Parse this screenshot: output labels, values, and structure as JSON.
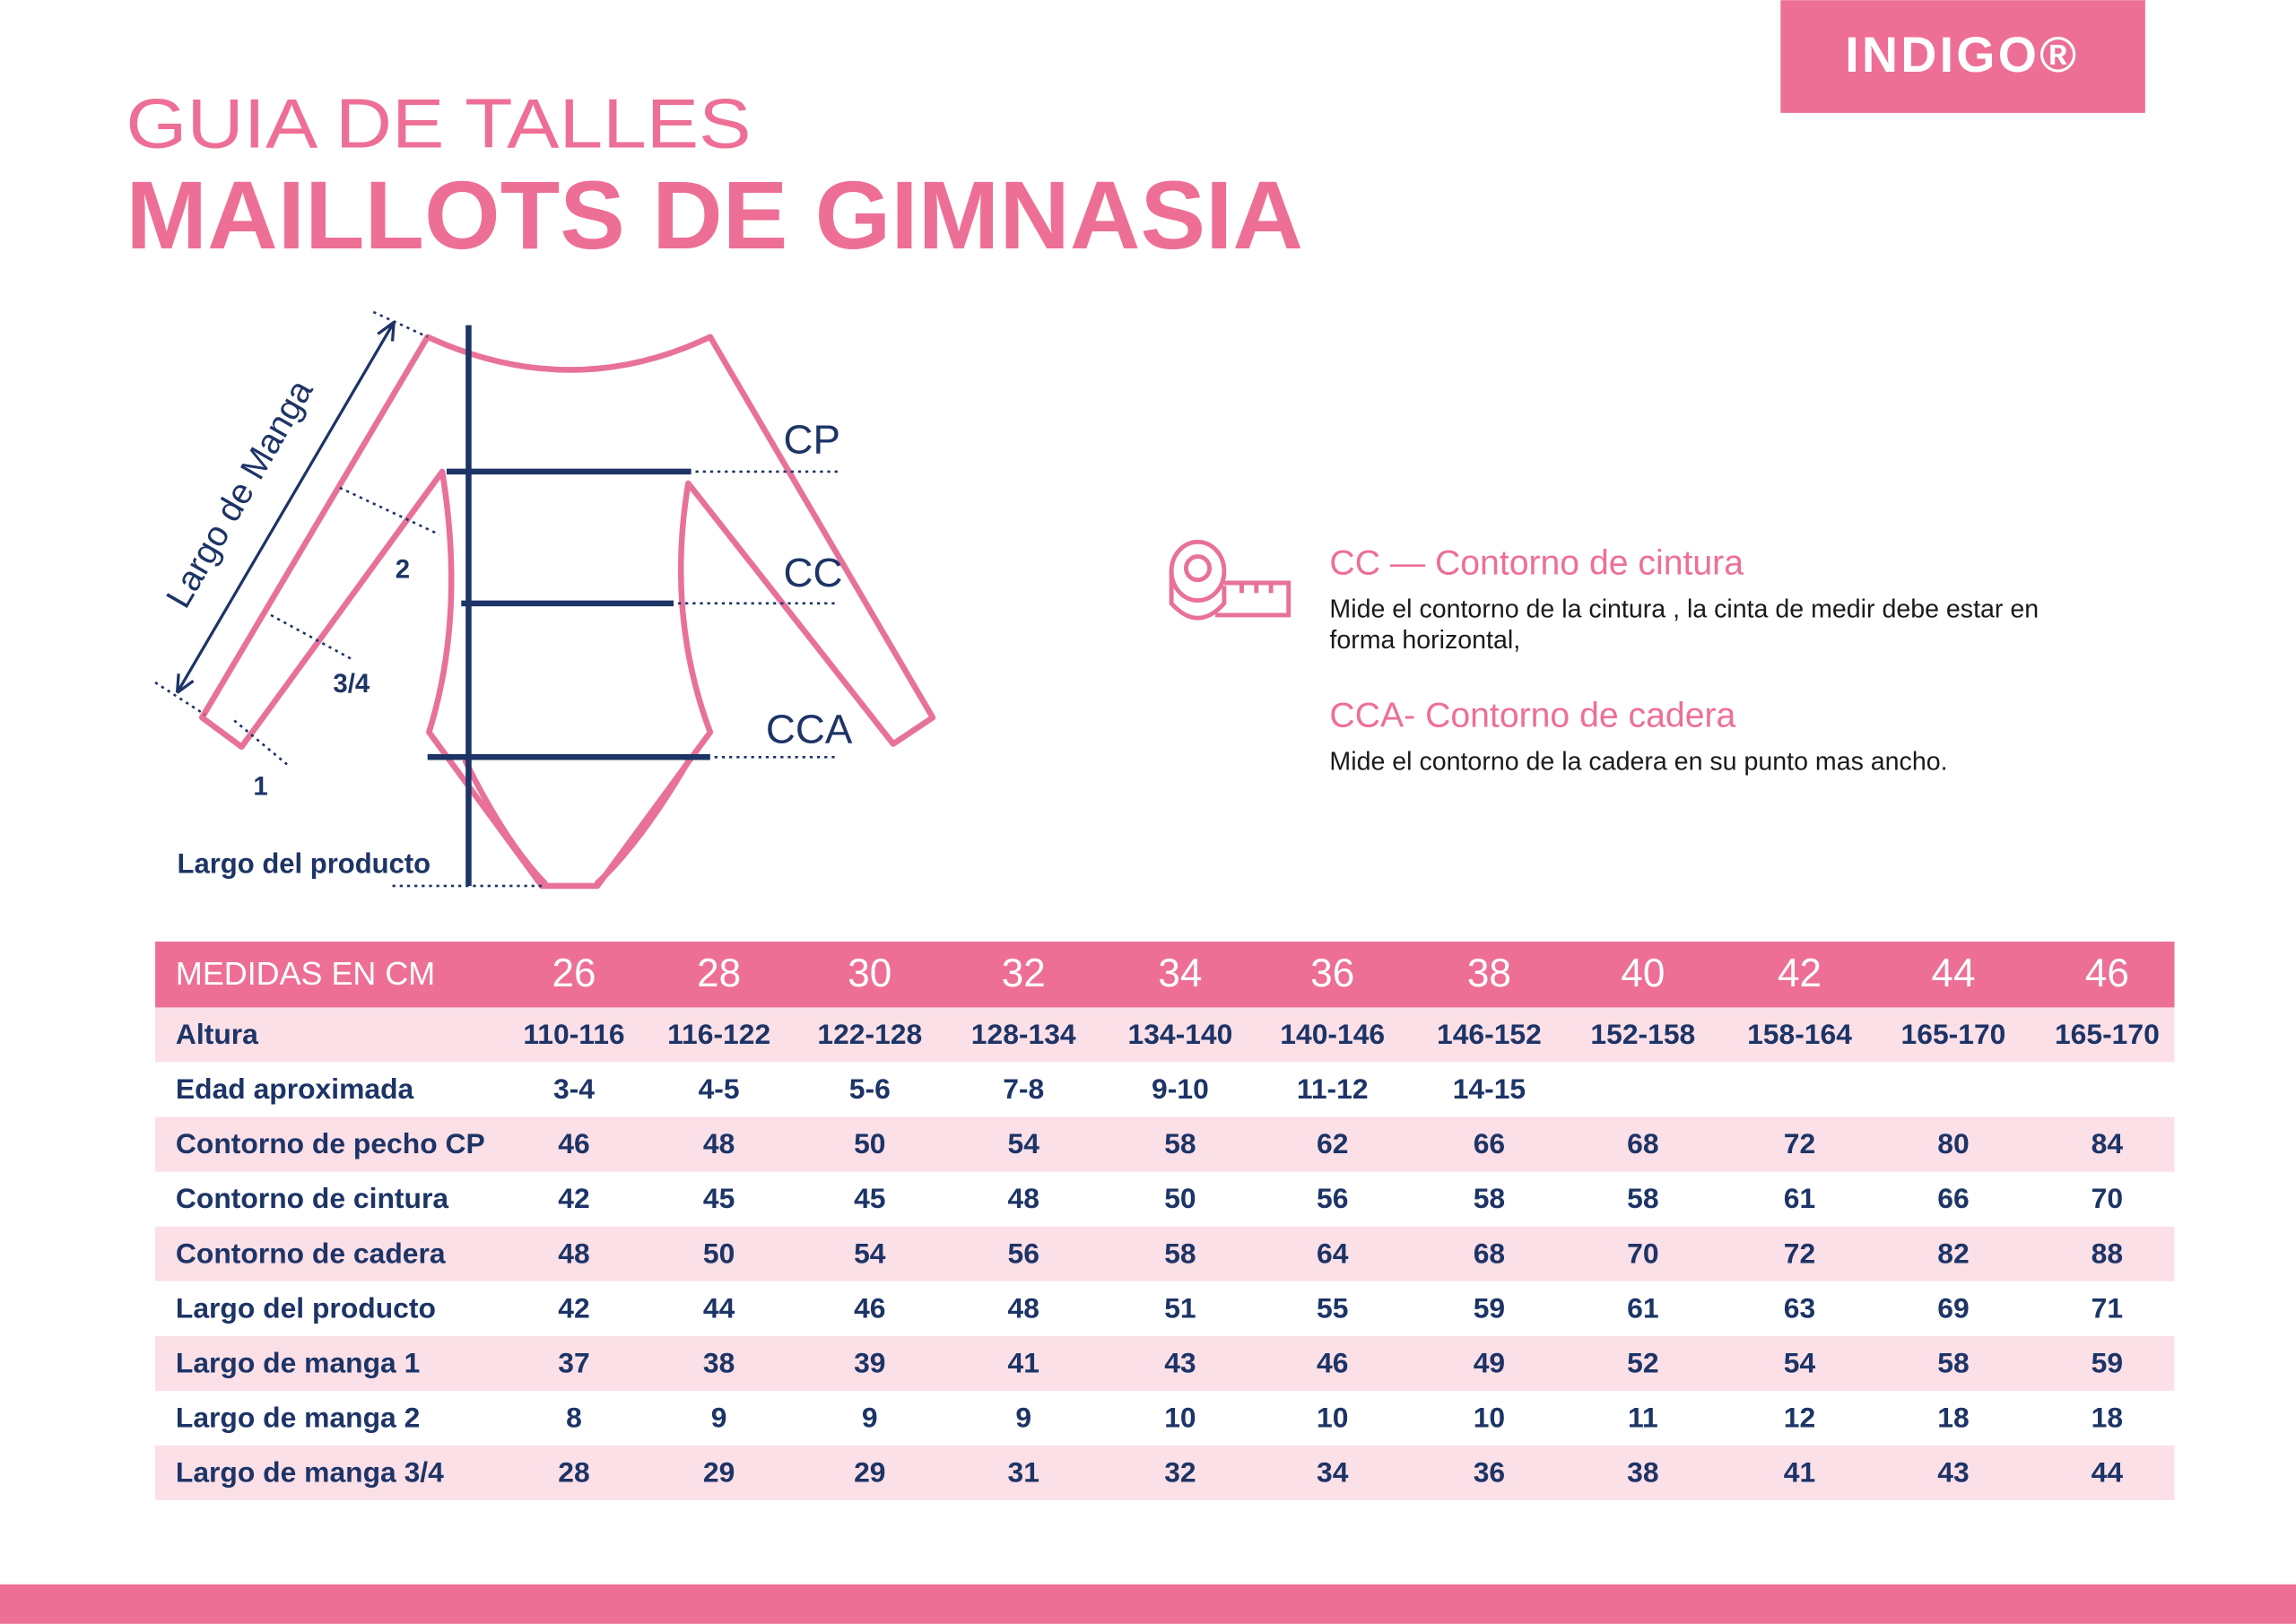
{
  "logo": "INDIGO®",
  "header": {
    "title": "GUIA DE TALLES",
    "subtitle": "MAILLOTS DE GIMNASIA"
  },
  "diagram": {
    "sleeve_length": "Largo de Manga",
    "sleeve_marks": [
      "2",
      "3/4",
      "1"
    ],
    "product_length": "Largo del producto",
    "measure_labels": [
      "CP",
      "CC",
      "CCA"
    ]
  },
  "legend": [
    {
      "title": "CC — Contorno de cintura",
      "description": [
        "Mide el contorno de la cintura , la cinta de medir debe estar en",
        "forma horizontal,"
      ]
    },
    {
      "title": "CCA- Contorno de cadera",
      "description": [
        "Mide el contorno de la cadera en su punto mas ancho."
      ]
    }
  ],
  "table": {
    "header": [
      "MEDIDAS EN CM",
      "26",
      "28",
      "30",
      "32",
      "34",
      "36",
      "38",
      "40",
      "42",
      "44",
      "46"
    ],
    "rows": [
      [
        "Altura",
        "110-116",
        "116-122",
        "122-128",
        "128-134",
        "134-140",
        "140-146",
        "146-152",
        "152-158",
        "158-164",
        "165-170",
        "165-170"
      ],
      [
        "Edad aproximada",
        "3-4",
        "4-5",
        "5-6",
        "7-8",
        "9-10",
        "11-12",
        "14-15",
        null,
        null,
        null,
        null
      ],
      [
        "Contorno de pecho CP",
        "46",
        "48",
        "50",
        "54",
        "58",
        "62",
        "66",
        "68",
        "72",
        "80",
        "84"
      ],
      [
        "Contorno de cintura",
        "42",
        "45",
        "45",
        "48",
        "50",
        "56",
        "58",
        "58",
        "61",
        "66",
        "70"
      ],
      [
        "Contorno de cadera",
        "48",
        "50",
        "54",
        "56",
        "58",
        "64",
        "68",
        "70",
        "72",
        "82",
        "88"
      ],
      [
        "Largo del producto",
        "42",
        "44",
        "46",
        "48",
        "51",
        "55",
        "59",
        "61",
        "63",
        "69",
        "71"
      ],
      [
        "Largo de manga 1",
        "37",
        "38",
        "39",
        "41",
        "43",
        "46",
        "49",
        "52",
        "54",
        "58",
        "59"
      ],
      [
        "Largo de manga 2",
        "8",
        "9",
        "9",
        "9",
        "10",
        "10",
        "10",
        "11",
        "12",
        "18",
        "18"
      ],
      [
        "Largo de manga 3/4",
        "28",
        "29",
        "29",
        "31",
        "32",
        "34",
        "36",
        "38",
        "41",
        "43",
        "44"
      ]
    ]
  }
}
